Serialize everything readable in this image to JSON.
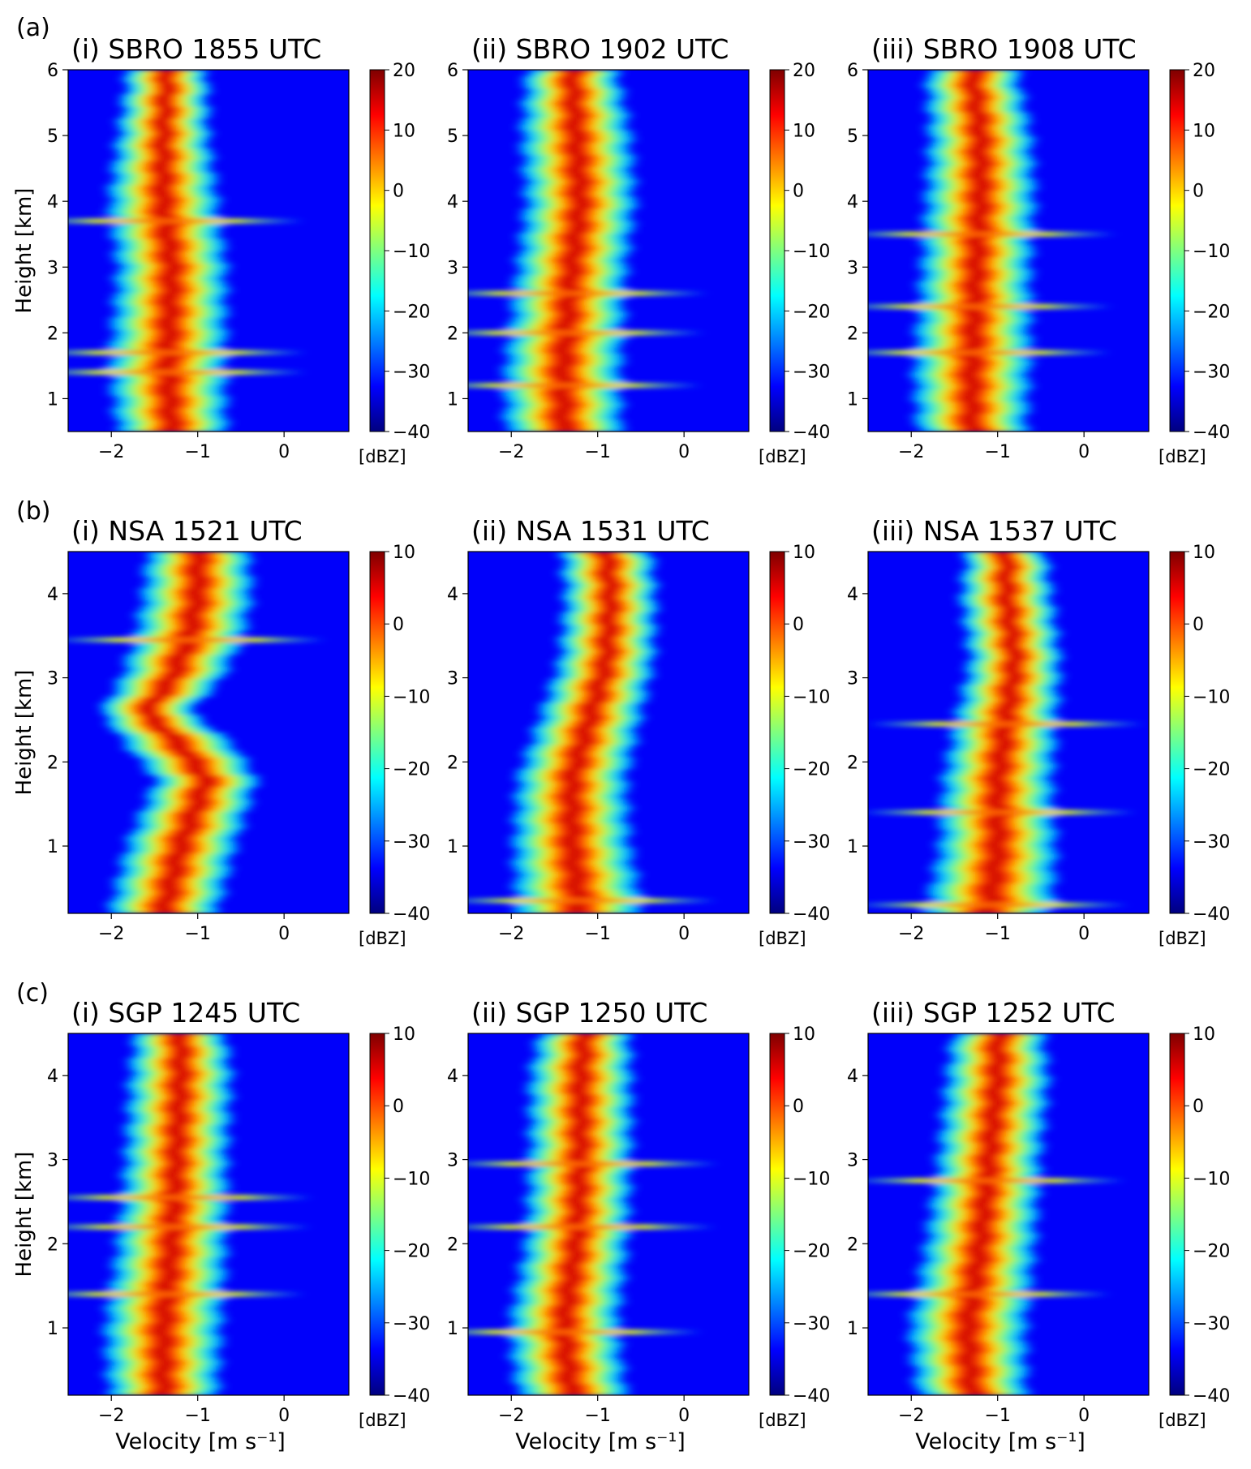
{
  "figure": {
    "rows": [
      {
        "label": "(a)"
      },
      {
        "label": "(b)"
      },
      {
        "label": "(c)"
      }
    ],
    "xlabel": "Velocity [m s⁻¹]",
    "ylabel": "Height [km]",
    "colorbar_unit": "[dBZ]",
    "colormap": [
      "#00007f",
      "#0000ff",
      "#007fff",
      "#00ffff",
      "#7fff7f",
      "#ffff00",
      "#ff7f00",
      "#ff0000",
      "#7f0000"
    ]
  },
  "chart_data": [
    {
      "type": "heatmap",
      "title": "(i) SBRO 1855 UTC",
      "xlabel": "",
      "ylabel": "Height [km]",
      "x_ticks": [
        -2,
        -1,
        0
      ],
      "y_ticks": [
        1,
        2,
        3,
        4,
        5,
        6
      ],
      "xlim": [
        -2.5,
        0.75
      ],
      "ylim": [
        0.5,
        6
      ],
      "colorbar": {
        "min": -40,
        "max": 20,
        "ticks": [
          20,
          10,
          0,
          -10,
          -20,
          -30,
          -40
        ],
        "unit": "[dBZ]"
      },
      "profile": [
        {
          "h": 0.5,
          "v": -1.3,
          "w": 0.3
        },
        {
          "h": 1.5,
          "v": -1.35,
          "w": 0.32
        },
        {
          "h": 3.0,
          "v": -1.3,
          "w": 0.3
        },
        {
          "h": 4.0,
          "v": -1.4,
          "w": 0.3
        },
        {
          "h": 5.0,
          "v": -1.4,
          "w": 0.25
        },
        {
          "h": 6.0,
          "v": -1.35,
          "w": 0.22
        }
      ],
      "bright_bands": [
        1.4,
        1.7,
        3.7
      ]
    },
    {
      "type": "heatmap",
      "title": "(ii) SBRO 1902 UTC",
      "xlabel": "",
      "ylabel": "",
      "x_ticks": [
        -2,
        -1,
        0
      ],
      "y_ticks": [
        1,
        2,
        3,
        4,
        5,
        6
      ],
      "xlim": [
        -2.5,
        0.75
      ],
      "ylim": [
        0.5,
        6
      ],
      "colorbar": {
        "min": -40,
        "max": 20,
        "ticks": [
          20,
          10,
          0,
          -10,
          -20,
          -30,
          -40
        ],
        "unit": "[dBZ]"
      },
      "profile": [
        {
          "h": 0.5,
          "v": -1.4,
          "w": 0.32
        },
        {
          "h": 1.5,
          "v": -1.4,
          "w": 0.32
        },
        {
          "h": 3.0,
          "v": -1.3,
          "w": 0.3
        },
        {
          "h": 4.0,
          "v": -1.2,
          "w": 0.3
        },
        {
          "h": 5.0,
          "v": -1.25,
          "w": 0.3
        },
        {
          "h": 6.0,
          "v": -1.3,
          "w": 0.25
        }
      ],
      "bright_bands": [
        1.2,
        2.0,
        2.6
      ]
    },
    {
      "type": "heatmap",
      "title": "(iii) SBRO 1908 UTC",
      "xlabel": "",
      "ylabel": "",
      "x_ticks": [
        -2,
        -1,
        0
      ],
      "y_ticks": [
        1,
        2,
        3,
        4,
        5,
        6
      ],
      "xlim": [
        -2.5,
        0.75
      ],
      "ylim": [
        0.5,
        6
      ],
      "colorbar": {
        "min": -40,
        "max": 20,
        "ticks": [
          20,
          10,
          0,
          -10,
          -20,
          -30,
          -40
        ],
        "unit": "[dBZ]"
      },
      "profile": [
        {
          "h": 0.5,
          "v": -1.3,
          "w": 0.3
        },
        {
          "h": 1.5,
          "v": -1.3,
          "w": 0.32
        },
        {
          "h": 3.0,
          "v": -1.25,
          "w": 0.3
        },
        {
          "h": 4.0,
          "v": -1.2,
          "w": 0.3
        },
        {
          "h": 5.0,
          "v": -1.2,
          "w": 0.28
        },
        {
          "h": 6.0,
          "v": -1.3,
          "w": 0.25
        }
      ],
      "bright_bands": [
        1.7,
        2.4,
        3.5
      ]
    },
    {
      "type": "heatmap",
      "title": "(i) NSA 1521 UTC",
      "xlabel": "",
      "ylabel": "Height [km]",
      "x_ticks": [
        -2,
        -1,
        0
      ],
      "y_ticks": [
        1,
        2,
        3,
        4
      ],
      "xlim": [
        -2.5,
        0.75
      ],
      "ylim": [
        0.2,
        4.5
      ],
      "colorbar": {
        "min": -40,
        "max": 10,
        "ticks": [
          10,
          0,
          -10,
          -20,
          -30,
          -40
        ],
        "unit": "[dBZ]"
      },
      "profile": [
        {
          "h": 0.2,
          "v": -1.4,
          "w": 0.3
        },
        {
          "h": 1.0,
          "v": -1.2,
          "w": 0.3
        },
        {
          "h": 1.8,
          "v": -0.9,
          "w": 0.28
        },
        {
          "h": 2.2,
          "v": -1.2,
          "w": 0.3
        },
        {
          "h": 2.6,
          "v": -1.6,
          "w": 0.25
        },
        {
          "h": 3.0,
          "v": -1.3,
          "w": 0.28
        },
        {
          "h": 3.5,
          "v": -1.1,
          "w": 0.3
        },
        {
          "h": 4.0,
          "v": -1.0,
          "w": 0.3
        },
        {
          "h": 4.5,
          "v": -1.0,
          "w": 0.28
        }
      ],
      "bright_bands": [
        3.45
      ]
    },
    {
      "type": "heatmap",
      "title": "(ii) NSA 1531 UTC",
      "xlabel": "",
      "ylabel": "",
      "x_ticks": [
        -2,
        -1,
        0
      ],
      "y_ticks": [
        1,
        2,
        3,
        4
      ],
      "xlim": [
        -2.5,
        0.75
      ],
      "ylim": [
        0.2,
        4.5
      ],
      "colorbar": {
        "min": -40,
        "max": 10,
        "ticks": [
          10,
          0,
          -10,
          -20,
          -30,
          -40
        ],
        "unit": "[dBZ]"
      },
      "profile": [
        {
          "h": 0.2,
          "v": -1.2,
          "w": 0.35
        },
        {
          "h": 1.0,
          "v": -1.3,
          "w": 0.32
        },
        {
          "h": 1.8,
          "v": -1.3,
          "w": 0.3
        },
        {
          "h": 2.5,
          "v": -1.1,
          "w": 0.28
        },
        {
          "h": 3.2,
          "v": -0.9,
          "w": 0.26
        },
        {
          "h": 4.0,
          "v": -0.85,
          "w": 0.25
        },
        {
          "h": 4.5,
          "v": -0.9,
          "w": 0.25
        }
      ],
      "bright_bands": [
        0.35
      ]
    },
    {
      "type": "heatmap",
      "title": "(iii) NSA 1537 UTC",
      "xlabel": "",
      "ylabel": "",
      "x_ticks": [
        -2,
        -1,
        0
      ],
      "y_ticks": [
        1,
        2,
        3,
        4
      ],
      "xlim": [
        -2.5,
        0.75
      ],
      "ylim": [
        0.2,
        4.5
      ],
      "colorbar": {
        "min": -40,
        "max": 10,
        "ticks": [
          10,
          0,
          -10,
          -20,
          -30,
          -40
        ],
        "unit": "[dBZ]"
      },
      "profile": [
        {
          "h": 0.2,
          "v": -1.1,
          "w": 0.35
        },
        {
          "h": 1.0,
          "v": -1.0,
          "w": 0.32
        },
        {
          "h": 1.8,
          "v": -1.0,
          "w": 0.3
        },
        {
          "h": 2.5,
          "v": -0.9,
          "w": 0.28
        },
        {
          "h": 3.2,
          "v": -0.8,
          "w": 0.25
        },
        {
          "h": 4.0,
          "v": -0.9,
          "w": 0.25
        },
        {
          "h": 4.5,
          "v": -0.9,
          "w": 0.22
        }
      ],
      "bright_bands": [
        0.3,
        1.4,
        2.45
      ]
    },
    {
      "type": "heatmap",
      "title": "(i) SGP 1245 UTC",
      "xlabel": "Velocity [m s⁻¹]",
      "ylabel": "Height [km]",
      "x_ticks": [
        -2,
        -1,
        0
      ],
      "y_ticks": [
        1,
        2,
        3,
        4
      ],
      "xlim": [
        -2.5,
        0.75
      ],
      "ylim": [
        0.2,
        4.5
      ],
      "colorbar": {
        "min": -40,
        "max": 10,
        "ticks": [
          10,
          0,
          -10,
          -20,
          -30,
          -40
        ],
        "unit": "[dBZ]"
      },
      "profile": [
        {
          "h": 0.2,
          "v": -1.4,
          "w": 0.3
        },
        {
          "h": 1.0,
          "v": -1.4,
          "w": 0.32
        },
        {
          "h": 2.0,
          "v": -1.3,
          "w": 0.3
        },
        {
          "h": 3.0,
          "v": -1.25,
          "w": 0.28
        },
        {
          "h": 4.0,
          "v": -1.2,
          "w": 0.28
        },
        {
          "h": 4.5,
          "v": -1.2,
          "w": 0.25
        }
      ],
      "bright_bands": [
        1.4,
        2.2,
        2.55
      ]
    },
    {
      "type": "heatmap",
      "title": "(ii) SGP 1250 UTC",
      "xlabel": "Velocity [m s⁻¹]",
      "ylabel": "",
      "x_ticks": [
        -2,
        -1,
        0
      ],
      "y_ticks": [
        1,
        2,
        3,
        4
      ],
      "xlim": [
        -2.5,
        0.75
      ],
      "ylim": [
        0.2,
        4.5
      ],
      "colorbar": {
        "min": -40,
        "max": 10,
        "ticks": [
          10,
          0,
          -10,
          -20,
          -30,
          -40
        ],
        "unit": "[dBZ]"
      },
      "profile": [
        {
          "h": 0.2,
          "v": -1.3,
          "w": 0.3
        },
        {
          "h": 1.0,
          "v": -1.4,
          "w": 0.3
        },
        {
          "h": 2.0,
          "v": -1.25,
          "w": 0.28
        },
        {
          "h": 3.0,
          "v": -1.2,
          "w": 0.28
        },
        {
          "h": 4.0,
          "v": -1.2,
          "w": 0.28
        },
        {
          "h": 4.5,
          "v": -1.15,
          "w": 0.25
        }
      ],
      "bright_bands": [
        0.95,
        2.2,
        2.95
      ]
    },
    {
      "type": "heatmap",
      "title": "(iii) SGP 1252 UTC",
      "xlabel": "Velocity [m s⁻¹]",
      "ylabel": "",
      "x_ticks": [
        -2,
        -1,
        0
      ],
      "y_ticks": [
        1,
        2,
        3,
        4
      ],
      "xlim": [
        -2.5,
        0.75
      ],
      "ylim": [
        0.2,
        4.5
      ],
      "colorbar": {
        "min": -40,
        "max": 10,
        "ticks": [
          10,
          0,
          -10,
          -20,
          -30,
          -40
        ],
        "unit": "[dBZ]"
      },
      "profile": [
        {
          "h": 0.2,
          "v": -1.3,
          "w": 0.3
        },
        {
          "h": 1.0,
          "v": -1.35,
          "w": 0.32
        },
        {
          "h": 2.0,
          "v": -1.2,
          "w": 0.3
        },
        {
          "h": 3.0,
          "v": -1.1,
          "w": 0.28
        },
        {
          "h": 4.0,
          "v": -1.0,
          "w": 0.28
        },
        {
          "h": 4.5,
          "v": -1.0,
          "w": 0.25
        }
      ],
      "bright_bands": [
        1.4,
        2.75
      ]
    }
  ]
}
